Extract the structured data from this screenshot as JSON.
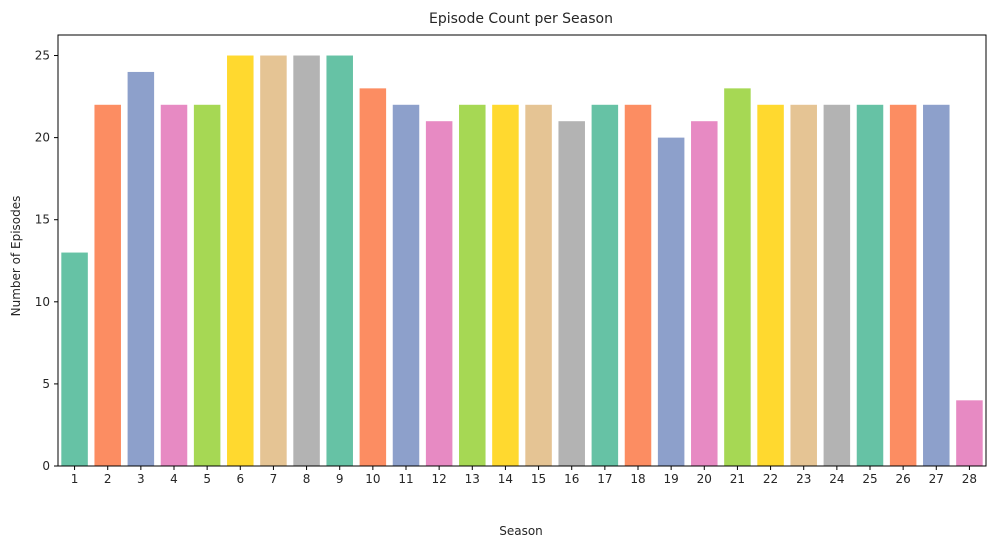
{
  "chart_data": {
    "type": "bar",
    "title": "Episode Count per Season",
    "xlabel": "Season",
    "ylabel": "Number of Episodes",
    "categories": [
      "1",
      "2",
      "3",
      "4",
      "5",
      "6",
      "7",
      "8",
      "9",
      "10",
      "11",
      "12",
      "13",
      "14",
      "15",
      "16",
      "17",
      "18",
      "19",
      "20",
      "21",
      "22",
      "23",
      "24",
      "25",
      "26",
      "27",
      "28"
    ],
    "values": [
      13,
      22,
      24,
      22,
      22,
      25,
      25,
      25,
      25,
      23,
      22,
      21,
      22,
      22,
      22,
      21,
      22,
      22,
      20,
      21,
      23,
      22,
      22,
      22,
      22,
      22,
      22,
      4
    ],
    "ylim": [
      0,
      26.25
    ],
    "yticks": [
      0,
      5,
      10,
      15,
      20,
      25
    ],
    "grid": false,
    "legend": "none",
    "palette": [
      "#66c2a5",
      "#fc8d62",
      "#8da0cb",
      "#e78ac3",
      "#a6d854",
      "#ffd92f",
      "#e5c494",
      "#b3b3b3"
    ]
  }
}
